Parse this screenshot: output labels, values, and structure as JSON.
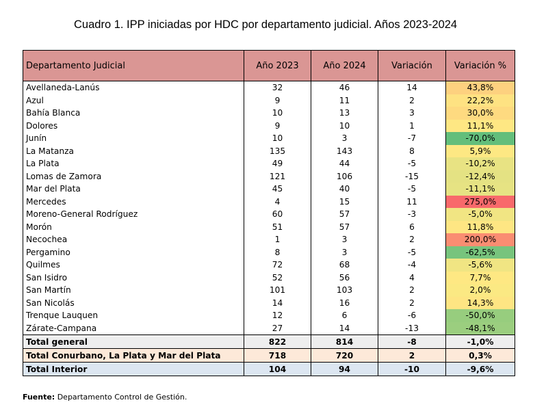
{
  "title": "Cuadro 1. IPP iniciadas por HDC por departamento judicial. Años 2023-2024",
  "headers": [
    "Departamento Judicial",
    "Año 2023",
    "Año 2024",
    "Variación",
    "Variación %"
  ],
  "rows": [
    {
      "name": "Avellaneda-Lanús",
      "y2023": "32",
      "y2024": "46",
      "var": "14",
      "pct": "43,8%",
      "color": "#fdd17f"
    },
    {
      "name": "Azul",
      "y2023": "9",
      "y2024": "11",
      "var": "2",
      "pct": "22,2%",
      "color": "#fee282"
    },
    {
      "name": "Bahía Blanca",
      "y2023": "10",
      "y2024": "13",
      "var": "3",
      "pct": "30,0%",
      "color": "#feda80"
    },
    {
      "name": "Dolores",
      "y2023": "9",
      "y2024": "10",
      "var": "1",
      "pct": "11,1%",
      "color": "#fee783"
    },
    {
      "name": "Junín",
      "y2023": "10",
      "y2024": "3",
      "var": "-7",
      "pct": "-70,0%",
      "color": "#63be7b"
    },
    {
      "name": "La Matanza",
      "y2023": "135",
      "y2024": "143",
      "var": "8",
      "pct": "5,9%",
      "color": "#fde883"
    },
    {
      "name": "La Plata",
      "y2023": "49",
      "y2024": "44",
      "var": "-5",
      "pct": "-10,2%",
      "color": "#e8e383"
    },
    {
      "name": "Lomas de Zamora",
      "y2023": "121",
      "y2024": "106",
      "var": "-15",
      "pct": "-12,4%",
      "color": "#e4e283"
    },
    {
      "name": "Mar del Plata",
      "y2023": "45",
      "y2024": "40",
      "var": "-5",
      "pct": "-11,1%",
      "color": "#e6e383"
    },
    {
      "name": "Mercedes",
      "y2023": "4",
      "y2024": "15",
      "var": "11",
      "pct": "275,0%",
      "color": "#f8696b"
    },
    {
      "name": "Moreno-General Rodríguez",
      "y2023": "60",
      "y2024": "57",
      "var": "-3",
      "pct": "-5,0%",
      "color": "#f1e583"
    },
    {
      "name": "Morón",
      "y2023": "51",
      "y2024": "57",
      "var": "6",
      "pct": "11,8%",
      "color": "#fee683"
    },
    {
      "name": "Necochea",
      "y2023": "1",
      "y2024": "3",
      "var": "2",
      "pct": "200,0%",
      "color": "#fa8d72"
    },
    {
      "name": "Pergamino",
      "y2023": "8",
      "y2024": "3",
      "var": "-5",
      "pct": "-62,5%",
      "color": "#77c47d"
    },
    {
      "name": "Quilmes",
      "y2023": "72",
      "y2024": "68",
      "var": "-4",
      "pct": "-5,6%",
      "color": "#f0e583"
    },
    {
      "name": "San Isidro",
      "y2023": "52",
      "y2024": "56",
      "var": "4",
      "pct": "7,7%",
      "color": "#fee883"
    },
    {
      "name": "San Martín",
      "y2023": "101",
      "y2024": "103",
      "var": "2",
      "pct": "2,0%",
      "color": "#fbe983"
    },
    {
      "name": "San Nicolás",
      "y2023": "14",
      "y2024": "16",
      "var": "2",
      "pct": "14,3%",
      "color": "#fee583"
    },
    {
      "name": "Trenque Lauquen",
      "y2023": "12",
      "y2024": "6",
      "var": "-6",
      "pct": "-50,0%",
      "color": "#97cd7e"
    },
    {
      "name": "Zárate-Campana",
      "y2023": "27",
      "y2024": "14",
      "var": "-13",
      "pct": "-48,1%",
      "color": "#9bce7f"
    }
  ],
  "totals": [
    {
      "name": "Total general",
      "y2023": "822",
      "y2024": "814",
      "var": "-8",
      "pct": "-1,0%"
    },
    {
      "name": "Total Conurbano, La Plata y Mar del Plata",
      "y2023": "718",
      "y2024": "720",
      "var": "2",
      "pct": "0,3%"
    },
    {
      "name": "Total Interior",
      "y2023": "104",
      "y2024": "94",
      "var": "-10",
      "pct": "-9,6%"
    }
  ],
  "footer": {
    "label": "Fuente:",
    "text": " Departamento Control de Gestión."
  }
}
